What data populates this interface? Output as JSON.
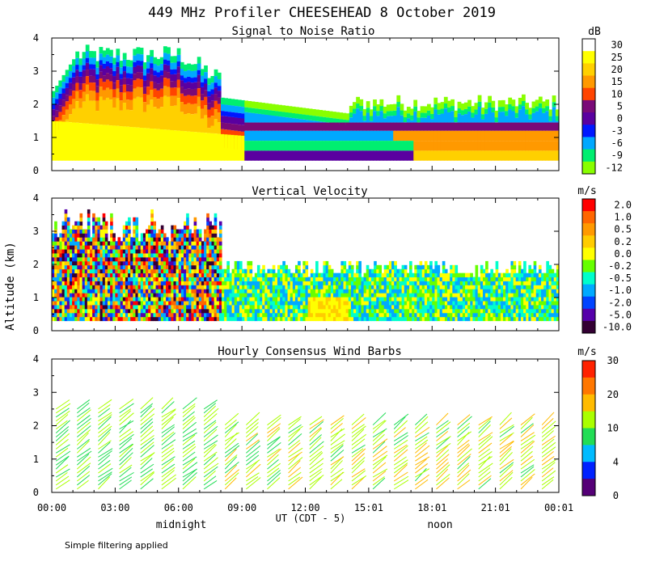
{
  "figure": {
    "title": "449 MHz Profiler CHEESEHEAD  8 October 2019",
    "ylabel": "Altitude (km)",
    "xlabel": "UT  (CDT - 5)",
    "x_ticks": [
      "00:00",
      "03:00",
      "06:00",
      "09:00",
      "12:00",
      "15:01",
      "18:01",
      "21:01",
      "00:01"
    ],
    "local_time_labels": [
      "midnight",
      "noon"
    ],
    "footnote": "Simple filtering applied"
  },
  "chart_data": [
    {
      "type": "heatmap",
      "title": "Signal to Noise Ratio",
      "x_range_hours_ut": [
        0,
        24
      ],
      "ylim_km": [
        0,
        4
      ],
      "y_ticks": [
        0,
        1,
        2,
        3,
        4
      ],
      "colorbar": {
        "unit": "dB",
        "labels": [
          "30",
          "25",
          "20",
          "15",
          "10",
          "5",
          "0",
          "-3",
          "-6",
          "-9",
          "-12"
        ],
        "colors": [
          "#ffffff",
          "#ffff00",
          "#ffd000",
          "#ff9900",
          "#ff4400",
          "#7a0a78",
          "#5a00a0",
          "#0018ff",
          "#00a8ff",
          "#00ee70",
          "#88ff00"
        ]
      }
    },
    {
      "type": "heatmap",
      "title": "Vertical Velocity",
      "x_range_hours_ut": [
        0,
        24
      ],
      "ylim_km": [
        0,
        4
      ],
      "y_ticks": [
        0,
        1,
        2,
        3,
        4
      ],
      "colorbar": {
        "unit": "m/s",
        "labels": [
          "2.0",
          "1.0",
          "0.5",
          "0.2",
          "0.0",
          "-0.2",
          "-0.5",
          "-1.0",
          "-2.0",
          "-5.0",
          "-10.0"
        ],
        "colors": [
          "#ff0000",
          "#ff6600",
          "#ff9900",
          "#ffcc00",
          "#ffff00",
          "#66ff00",
          "#00ffcc",
          "#00aaff",
          "#0044ff",
          "#5500aa",
          "#330033"
        ]
      }
    },
    {
      "type": "wind_barbs",
      "title": "Hourly Consensus Wind Barbs",
      "x_range_hours_ut": [
        0,
        24
      ],
      "ylim_km": [
        0,
        4
      ],
      "y_ticks": [
        0,
        1,
        2,
        3,
        4
      ],
      "colorbar": {
        "unit": "m/s",
        "labels": [
          "30",
          "20",
          "10",
          "4",
          "0"
        ],
        "colors": [
          "#ff2200",
          "#ff7700",
          "#ffbb00",
          "#aaff00",
          "#22dd55",
          "#00bbff",
          "#0022ff",
          "#550077"
        ]
      }
    }
  ]
}
